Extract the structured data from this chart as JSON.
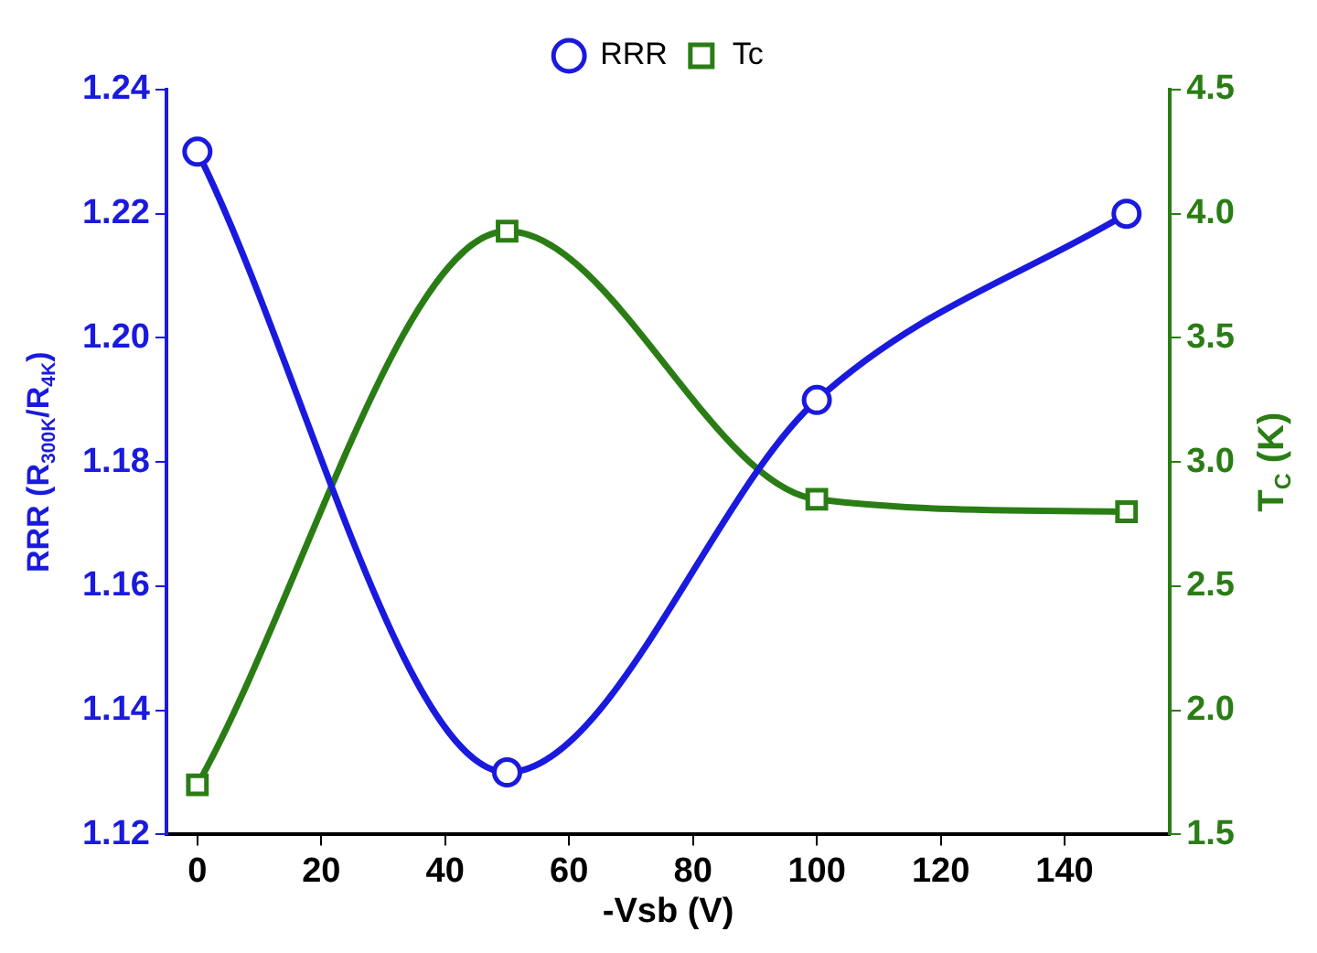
{
  "chart_data": {
    "type": "line",
    "xlabel": "-Vsb (V)",
    "ylabel": "RRR (R$_{300K}$/R$_{4K}$)",
    "y2label": "T$_{C}$ (K)",
    "x": [
      0,
      50,
      100,
      150
    ],
    "series": [
      {
        "name": "RRR",
        "color": "#1a1ade",
        "values": [
          1.23,
          1.13,
          1.19,
          1.22
        ],
        "marker": "circle"
      },
      {
        "name": "Tc",
        "color": "#2a7d14",
        "values": [
          1.7,
          3.93,
          2.85,
          2.8
        ],
        "axis": "y2",
        "marker": "square"
      }
    ],
    "xlim": [
      -5,
      157
    ],
    "xticks": [
      0,
      20,
      40,
      60,
      80,
      100,
      120,
      140
    ],
    "ylim": [
      1.12,
      1.24
    ],
    "yticks": [
      {
        "value": 1.12,
        "label": "1.12"
      },
      {
        "value": 1.14,
        "label": "1.14"
      },
      {
        "value": 1.16,
        "label": "1.16"
      },
      {
        "value": 1.18,
        "label": "1.18"
      },
      {
        "value": 1.2,
        "label": "1.20"
      },
      {
        "value": 1.22,
        "label": "1.22"
      },
      {
        "value": 1.24,
        "label": "1.24"
      }
    ],
    "y2lim": [
      1.5,
      4.5
    ],
    "y2ticks": [
      {
        "value": 1.5,
        "label": "1.5"
      },
      {
        "value": 2,
        "label": "2.0"
      },
      {
        "value": 2.5,
        "label": "2.5"
      },
      {
        "value": 3,
        "label": "3.0"
      },
      {
        "value": 3.5,
        "label": "3.5"
      },
      {
        "value": 4,
        "label": "4.0"
      },
      {
        "value": 4.5,
        "label": "4.5"
      }
    ],
    "legend": "top",
    "grid": false
  }
}
